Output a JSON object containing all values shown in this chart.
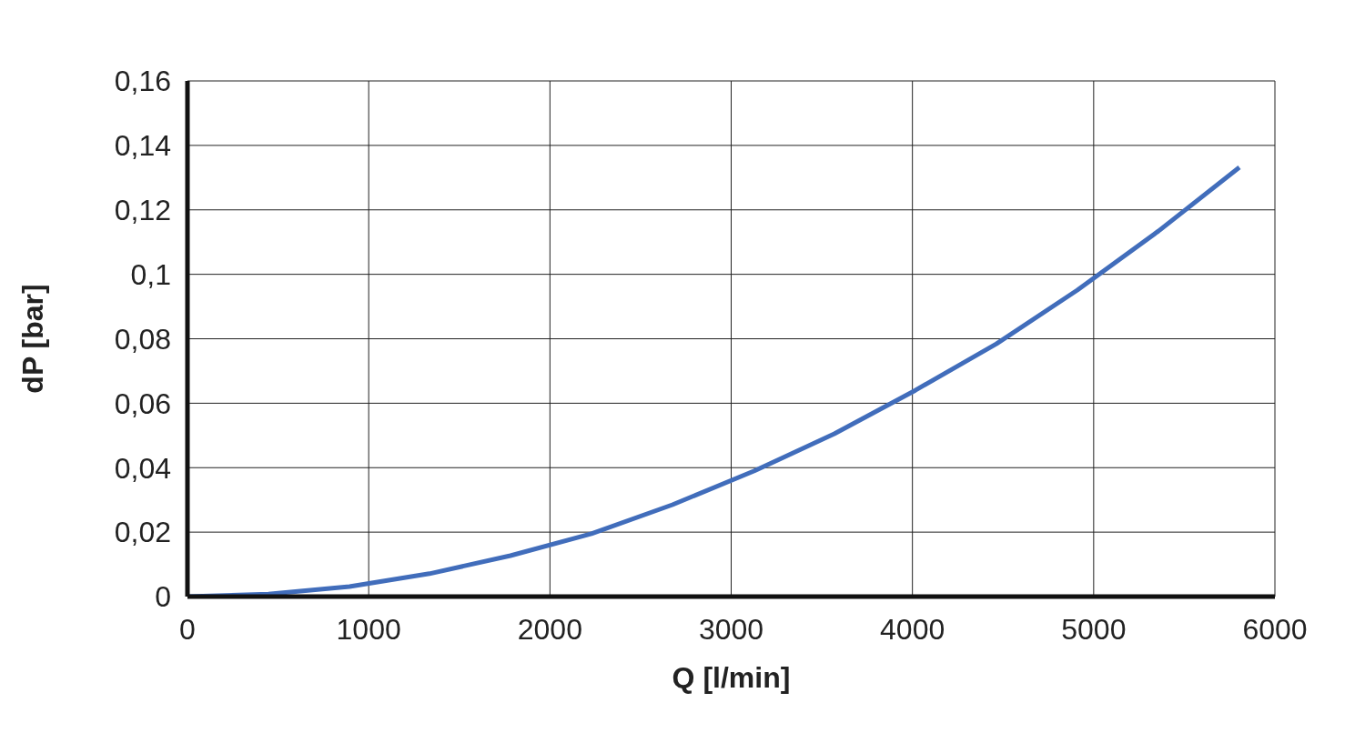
{
  "chart_data": {
    "type": "line",
    "xlabel": "Q [l/min]",
    "ylabel": "dP [bar]",
    "x": [
      0,
      447,
      894,
      1335,
      1782,
      2229,
      2676,
      3128,
      3569,
      4016,
      4463,
      4910,
      5357,
      5804
    ],
    "series": [
      {
        "color": "#416dbb",
        "values": [
          0,
          0.0008,
          0.0031,
          0.0071,
          0.0127,
          0.0195,
          0.0285,
          0.039,
          0.0505,
          0.064,
          0.0784,
          0.0951,
          0.1134,
          0.1332
        ]
      }
    ],
    "xlim": [
      0,
      6000
    ],
    "xticks": [
      0,
      1000,
      2000,
      3000,
      4000,
      5000,
      6000
    ],
    "ylim": [
      0,
      0.16
    ],
    "yticks": [
      {
        "value": 0,
        "label": "0"
      },
      {
        "value": 0.02,
        "label": "0,02"
      },
      {
        "value": 0.04,
        "label": "0,04"
      },
      {
        "value": 0.06,
        "label": "0,06"
      },
      {
        "value": 0.08,
        "label": "0,08"
      },
      {
        "value": 0.1,
        "label": "0,1"
      },
      {
        "value": 0.12,
        "label": "0,12"
      },
      {
        "value": 0.14,
        "label": "0,14"
      },
      {
        "value": 0.16,
        "label": "0,16"
      }
    ],
    "grid": true,
    "line_style": "solid"
  }
}
